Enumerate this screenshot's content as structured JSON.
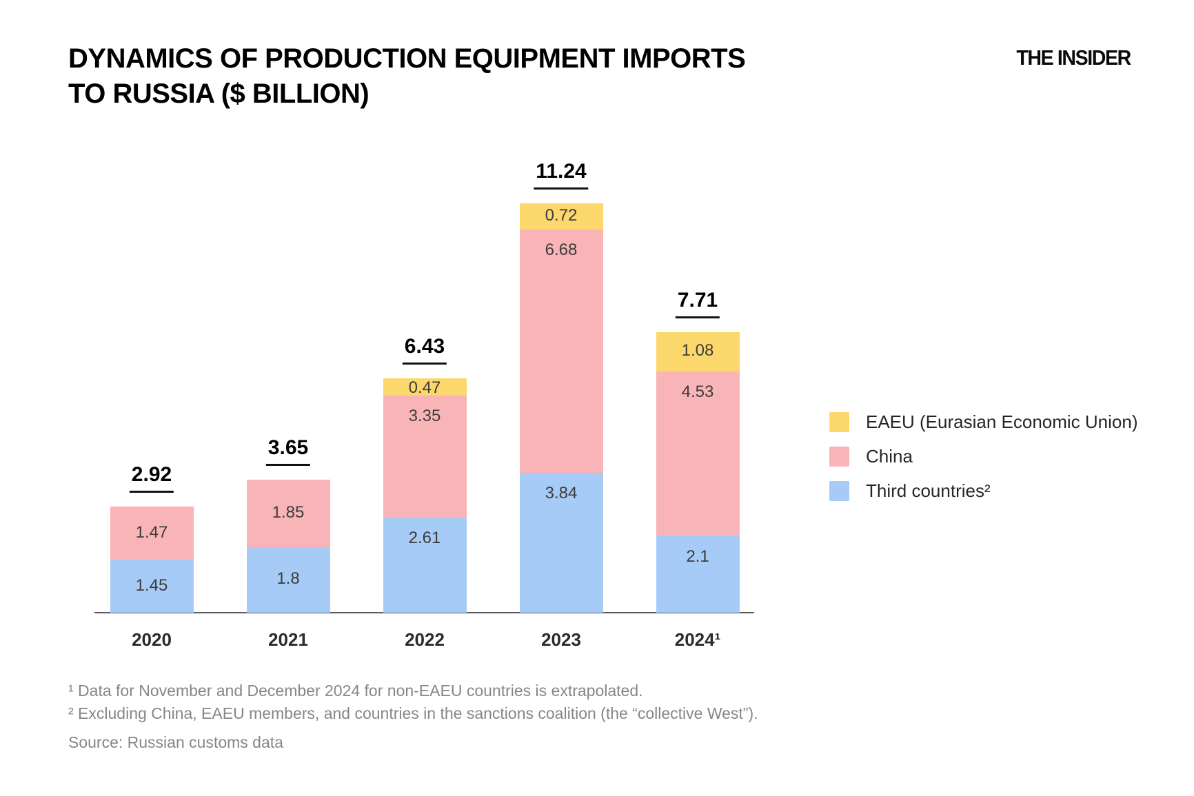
{
  "header": {
    "title": "DYNAMICS OF PRODUCTION EQUIPMENT IMPORTS TO RUSSIA ($ BILLION)",
    "logo": "THE INSIDER"
  },
  "chart_data": {
    "type": "bar",
    "stacked": true,
    "title": "Dynamics of production equipment imports to Russia ($ billion)",
    "categories": [
      "2020",
      "2021",
      "2022",
      "2023",
      "2024¹"
    ],
    "series": [
      {
        "name": "Third countries²",
        "color": "#A6CBF6",
        "values": [
          1.45,
          1.8,
          2.61,
          3.84,
          2.1
        ],
        "labels": [
          "1.45",
          "1.8",
          "2.61",
          "3.84",
          "2.1"
        ]
      },
      {
        "name": "China",
        "color": "#F9B4B7",
        "values": [
          1.47,
          1.85,
          3.35,
          6.68,
          4.53
        ],
        "labels": [
          "1.47",
          "1.85",
          "3.35",
          "6.68",
          "4.53"
        ]
      },
      {
        "name": "EAEU (Eurasian Economic Union)",
        "color": "#FBD76C",
        "values": [
          0,
          0,
          0.47,
          0.72,
          1.08
        ],
        "labels": [
          "",
          "",
          "0.47",
          "0.72",
          "1.08"
        ]
      }
    ],
    "totals": [
      "2.92",
      "3.65",
      "6.43",
      "11.24",
      "7.71"
    ],
    "ylim": [
      0,
      11.24
    ],
    "grid": false,
    "legend_position": "right"
  },
  "legend": {
    "items": [
      {
        "label": "EAEU (Eurasian Economic Union)",
        "color": "#FBD76C"
      },
      {
        "label": "China",
        "color": "#F9B4B7"
      },
      {
        "label": "Third countries²",
        "color": "#A6CBF6"
      }
    ]
  },
  "footnotes": {
    "note1": "¹ Data for November and December 2024 for non-EAEU countries is extrapolated.",
    "note2": "² Excluding China, EAEU members, and countries in the sanctions coalition (the “collective West”).",
    "source": "Source: Russian customs data"
  }
}
